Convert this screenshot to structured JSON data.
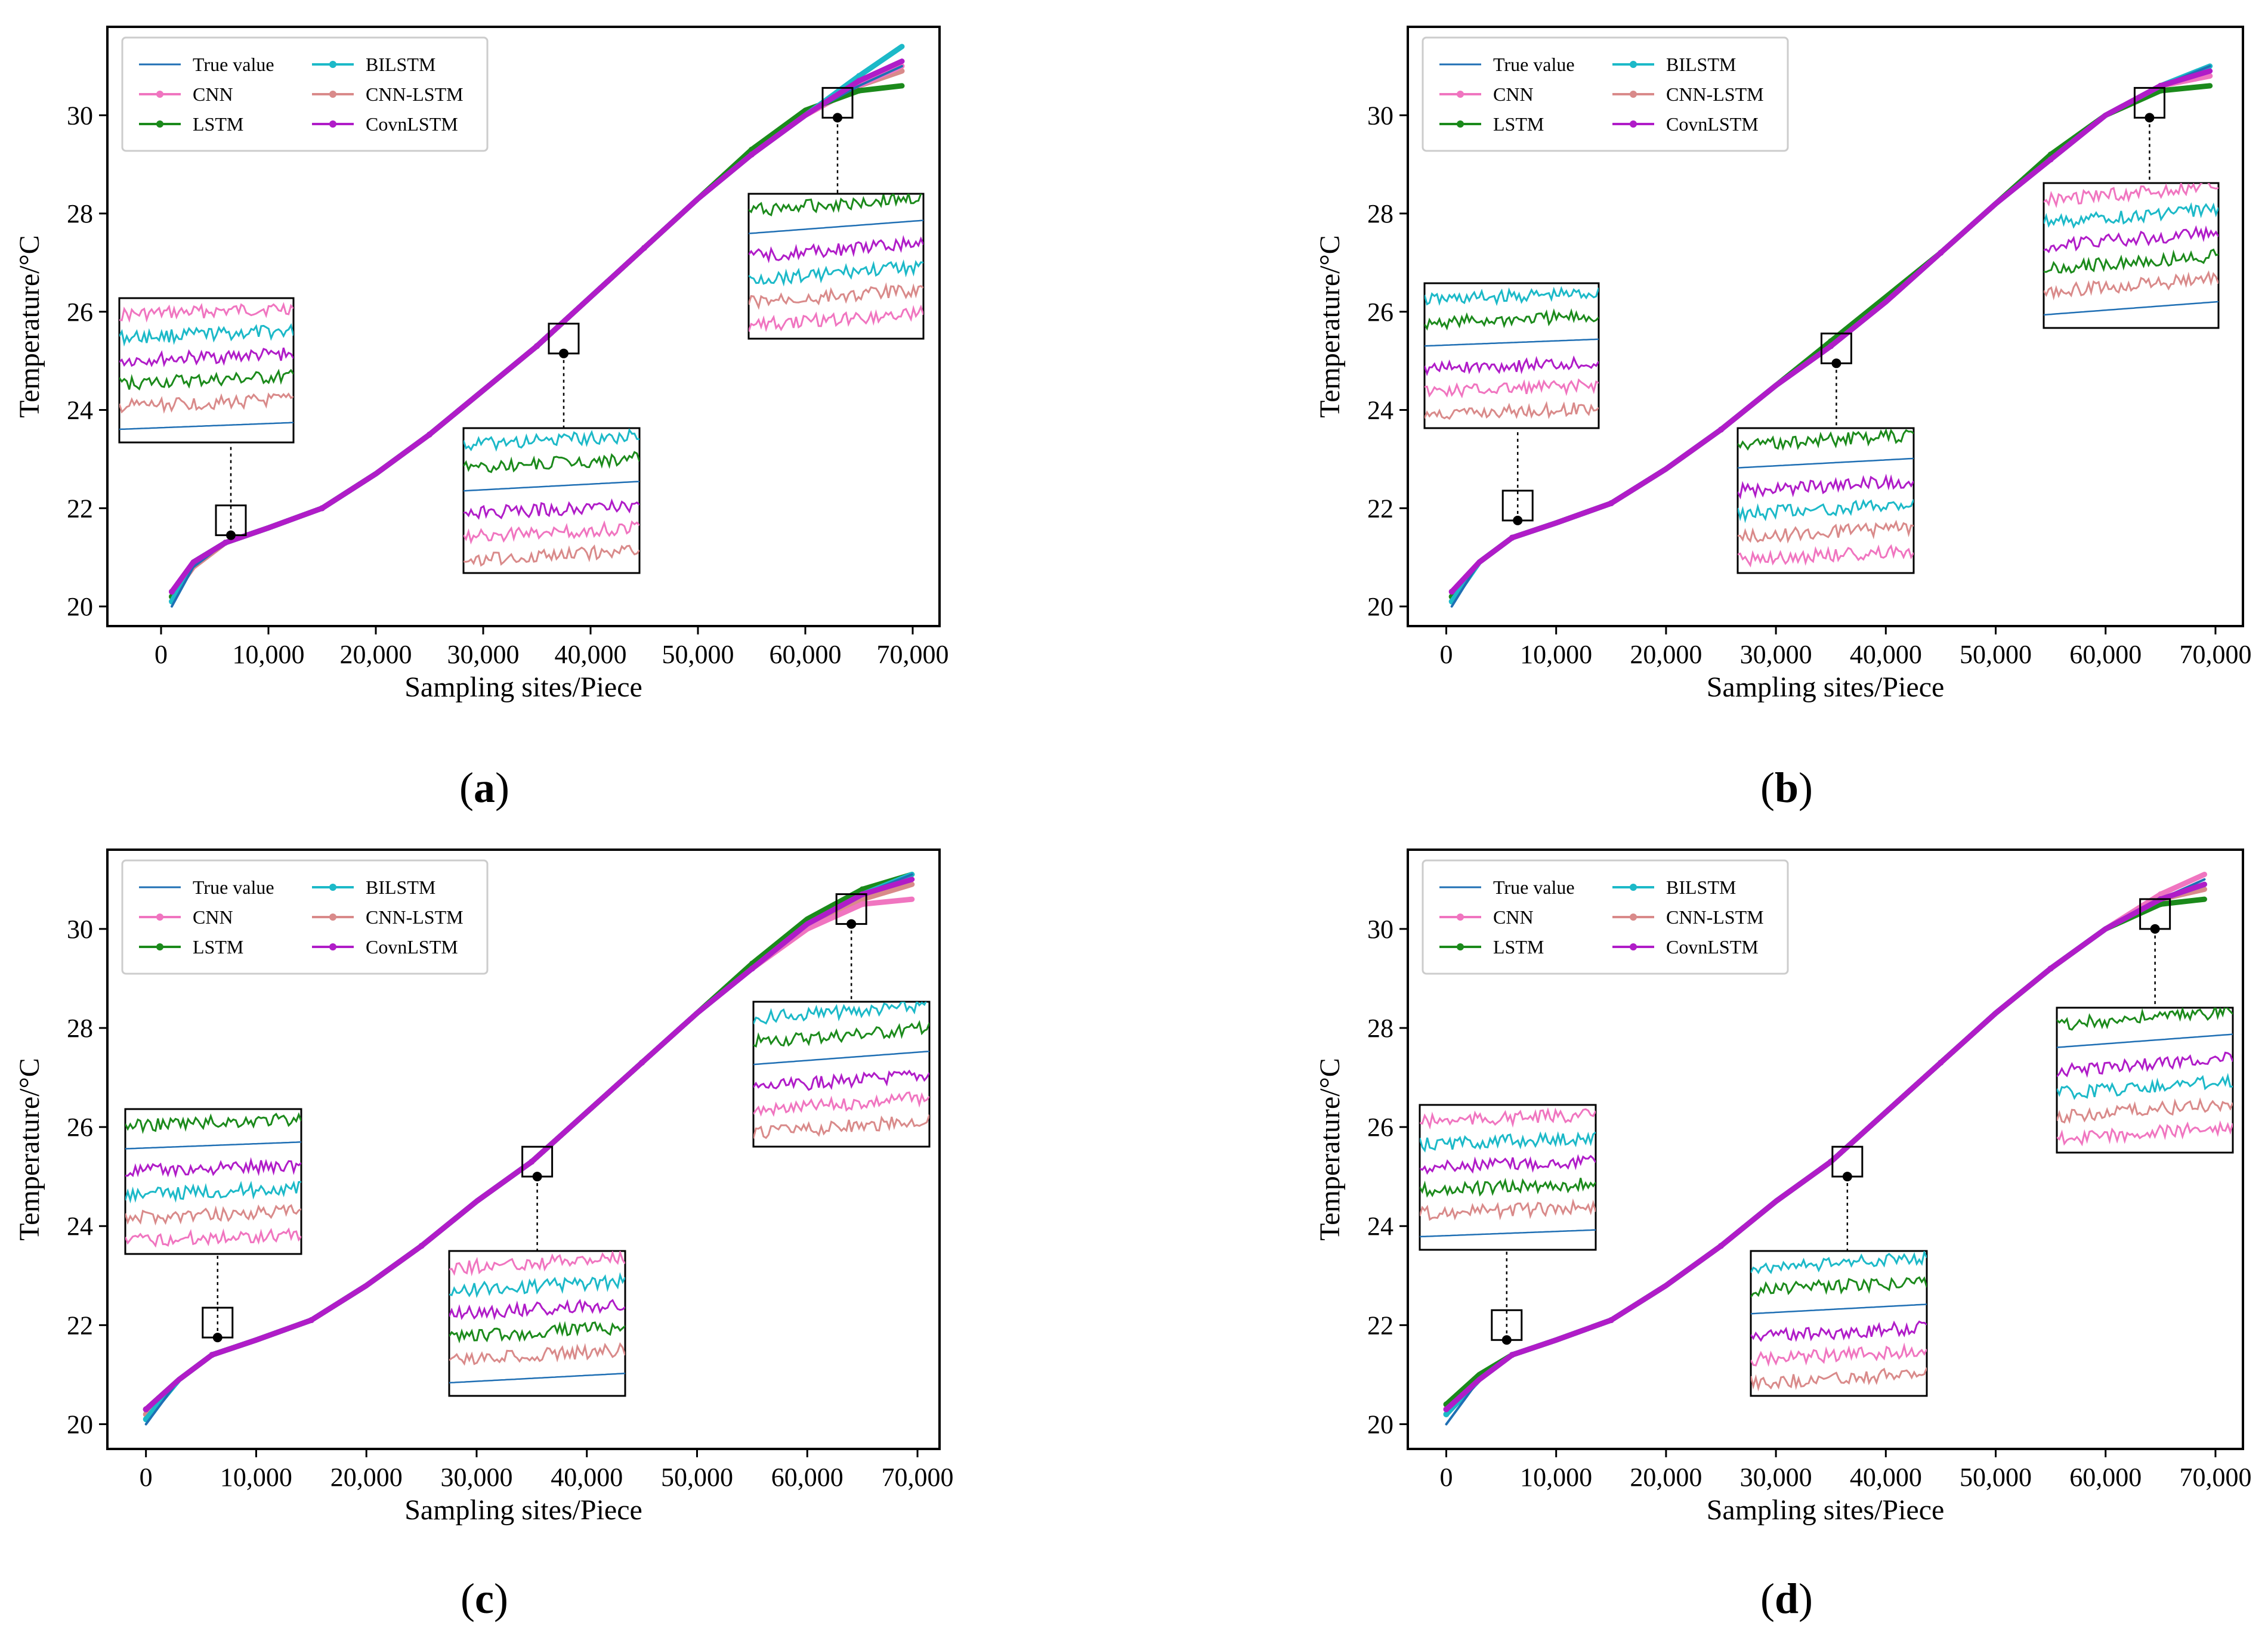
{
  "figure_title": "",
  "colors": {
    "True value": "#1f6fb4",
    "CNN": "#f075c0",
    "LSTM": "#1b8a1b",
    "BILSTM": "#1cb9c8",
    "CNN-LSTM": "#d98a8a",
    "CovnLSTM": "#b01cc8"
  },
  "chart_data": [
    {
      "id": "a",
      "type": "line",
      "panel_label": "a",
      "xlabel": "Sampling sites/Piece",
      "ylabel": "Temperature/°C",
      "xlim": [
        -5000,
        72500
      ],
      "ylim": [
        19.6,
        31.8
      ],
      "xticks": [
        0,
        10000,
        20000,
        30000,
        40000,
        50000,
        60000,
        70000
      ],
      "xtick_labels": [
        "0",
        "10,000",
        "20,000",
        "30,000",
        "40,000",
        "50,000",
        "60,000",
        "70,000"
      ],
      "yticks": [
        20,
        22,
        24,
        26,
        28,
        30
      ],
      "ytick_labels": [
        "20",
        "22",
        "24",
        "26",
        "28",
        "30"
      ],
      "legend": [
        "True value",
        "CNN",
        "LSTM",
        "BILSTM",
        "CNN-LSTM",
        "CovnLSTM"
      ],
      "legend_position": "top-left",
      "x": [
        1000,
        3000,
        6000,
        10000,
        15000,
        20000,
        25000,
        30000,
        35000,
        40000,
        45000,
        50000,
        55000,
        60000,
        65000,
        69000
      ],
      "series": [
        {
          "name": "True value",
          "values": [
            20.0,
            20.8,
            21.3,
            21.6,
            22.0,
            22.7,
            23.5,
            24.4,
            25.3,
            26.3,
            27.3,
            28.3,
            29.2,
            30.0,
            30.6,
            31.0
          ]
        },
        {
          "name": "CNN",
          "values": [
            20.3,
            20.9,
            21.3,
            21.6,
            22.0,
            22.7,
            23.5,
            24.4,
            25.3,
            26.3,
            27.3,
            28.3,
            29.2,
            30.0,
            30.6,
            31.0
          ]
        },
        {
          "name": "LSTM",
          "values": [
            20.2,
            20.9,
            21.3,
            21.6,
            22.0,
            22.7,
            23.5,
            24.4,
            25.3,
            26.3,
            27.3,
            28.3,
            29.3,
            30.1,
            30.5,
            30.6
          ]
        },
        {
          "name": "BILSTM",
          "values": [
            20.1,
            20.9,
            21.3,
            21.6,
            22.0,
            22.7,
            23.5,
            24.4,
            25.3,
            26.3,
            27.3,
            28.3,
            29.2,
            30.0,
            30.8,
            31.4
          ]
        },
        {
          "name": "CNN-LSTM",
          "values": [
            20.2,
            20.8,
            21.3,
            21.6,
            22.0,
            22.7,
            23.5,
            24.4,
            25.3,
            26.3,
            27.3,
            28.3,
            29.2,
            30.0,
            30.6,
            30.9
          ]
        },
        {
          "name": "CovnLSTM",
          "values": [
            20.3,
            20.9,
            21.3,
            21.6,
            22.0,
            22.7,
            23.5,
            24.4,
            25.3,
            26.3,
            27.3,
            28.3,
            29.2,
            30.0,
            30.7,
            31.1
          ]
        }
      ],
      "zoom_points": [
        {
          "x": 6500,
          "y": 21.45
        },
        {
          "x": 37500,
          "y": 25.15
        },
        {
          "x": 63000,
          "y": 29.95
        }
      ]
    },
    {
      "id": "b",
      "type": "line",
      "panel_label": "b",
      "xlabel": "Sampling sites/Piece",
      "ylabel": "Temperature/°C",
      "xlim": [
        -3500,
        72500
      ],
      "ylim": [
        19.6,
        31.8
      ],
      "xticks": [
        0,
        10000,
        20000,
        30000,
        40000,
        50000,
        60000,
        70000
      ],
      "xtick_labels": [
        "0",
        "10,000",
        "20,000",
        "30,000",
        "40,000",
        "50,000",
        "60,000",
        "70,000"
      ],
      "yticks": [
        20,
        22,
        24,
        26,
        28,
        30
      ],
      "ytick_labels": [
        "20",
        "22",
        "24",
        "26",
        "28",
        "30"
      ],
      "legend": [
        "True value",
        "CNN",
        "LSTM",
        "BILSTM",
        "CNN-LSTM",
        "CovnLSTM"
      ],
      "legend_position": "top-left",
      "x": [
        500,
        3000,
        6000,
        10000,
        15000,
        20000,
        25000,
        30000,
        35000,
        40000,
        45000,
        50000,
        55000,
        60000,
        65000,
        69500
      ],
      "series": [
        {
          "name": "True value",
          "values": [
            20.0,
            20.9,
            21.4,
            21.7,
            22.1,
            22.8,
            23.6,
            24.5,
            25.3,
            26.2,
            27.2,
            28.2,
            29.1,
            30.0,
            30.6,
            31.0
          ]
        },
        {
          "name": "CNN",
          "values": [
            20.3,
            20.9,
            21.4,
            21.7,
            22.1,
            22.8,
            23.6,
            24.5,
            25.3,
            26.2,
            27.2,
            28.2,
            29.1,
            30.0,
            30.6,
            30.8
          ]
        },
        {
          "name": "LSTM",
          "values": [
            20.2,
            20.9,
            21.4,
            21.7,
            22.1,
            22.8,
            23.6,
            24.5,
            25.4,
            26.3,
            27.2,
            28.2,
            29.2,
            30.0,
            30.5,
            30.6
          ]
        },
        {
          "name": "BILSTM",
          "values": [
            20.1,
            20.9,
            21.4,
            21.7,
            22.1,
            22.8,
            23.6,
            24.5,
            25.3,
            26.2,
            27.2,
            28.2,
            29.1,
            30.0,
            30.6,
            31.0
          ]
        },
        {
          "name": "CNN-LSTM",
          "values": [
            20.2,
            20.9,
            21.4,
            21.7,
            22.1,
            22.8,
            23.6,
            24.5,
            25.3,
            26.2,
            27.2,
            28.2,
            29.1,
            30.0,
            30.6,
            30.8
          ]
        },
        {
          "name": "CovnLSTM",
          "values": [
            20.3,
            20.9,
            21.4,
            21.7,
            22.1,
            22.8,
            23.6,
            24.5,
            25.3,
            26.2,
            27.2,
            28.2,
            29.1,
            30.0,
            30.6,
            30.9
          ]
        }
      ],
      "zoom_points": [
        {
          "x": 6500,
          "y": 21.75
        },
        {
          "x": 35500,
          "y": 24.95
        },
        {
          "x": 64000,
          "y": 29.95
        }
      ]
    },
    {
      "id": "c",
      "type": "line",
      "panel_label": "c",
      "xlabel": "Sampling sites/Piece",
      "ylabel": "Temperature/°C",
      "xlim": [
        -3500,
        72000
      ],
      "ylim": [
        19.5,
        31.6
      ],
      "xticks": [
        0,
        10000,
        20000,
        30000,
        40000,
        50000,
        60000,
        70000
      ],
      "xtick_labels": [
        "0",
        "10,000",
        "20,000",
        "30,000",
        "40,000",
        "50,000",
        "60,000",
        "70,000"
      ],
      "yticks": [
        20,
        22,
        24,
        26,
        28,
        30
      ],
      "ytick_labels": [
        "20",
        "22",
        "24",
        "26",
        "28",
        "30"
      ],
      "legend": [
        "True value",
        "CNN",
        "LSTM",
        "BILSTM",
        "CNN-LSTM",
        "CovnLSTM"
      ],
      "legend_position": "top-left",
      "x": [
        0,
        3000,
        6000,
        10000,
        15000,
        20000,
        25000,
        30000,
        35000,
        40000,
        45000,
        50000,
        55000,
        60000,
        65000,
        69500
      ],
      "series": [
        {
          "name": "True value",
          "values": [
            20.0,
            20.9,
            21.4,
            21.7,
            22.1,
            22.8,
            23.6,
            24.5,
            25.3,
            26.3,
            27.3,
            28.3,
            29.2,
            30.1,
            30.7,
            31.1
          ]
        },
        {
          "name": "CNN",
          "values": [
            20.3,
            20.9,
            21.4,
            21.7,
            22.1,
            22.8,
            23.6,
            24.5,
            25.3,
            26.3,
            27.3,
            28.3,
            29.2,
            30.0,
            30.5,
            30.6
          ]
        },
        {
          "name": "LSTM",
          "values": [
            20.3,
            20.9,
            21.4,
            21.7,
            22.1,
            22.8,
            23.6,
            24.5,
            25.3,
            26.3,
            27.3,
            28.3,
            29.3,
            30.2,
            30.8,
            31.1
          ]
        },
        {
          "name": "BILSTM",
          "values": [
            20.1,
            20.9,
            21.4,
            21.7,
            22.1,
            22.8,
            23.6,
            24.5,
            25.3,
            26.3,
            27.3,
            28.3,
            29.2,
            30.1,
            30.7,
            31.1
          ]
        },
        {
          "name": "CNN-LSTM",
          "values": [
            20.2,
            20.9,
            21.4,
            21.7,
            22.1,
            22.8,
            23.6,
            24.5,
            25.3,
            26.3,
            27.3,
            28.3,
            29.2,
            30.0,
            30.6,
            30.9
          ]
        },
        {
          "name": "CovnLSTM",
          "values": [
            20.3,
            20.9,
            21.4,
            21.7,
            22.1,
            22.8,
            23.6,
            24.5,
            25.3,
            26.3,
            27.3,
            28.3,
            29.2,
            30.1,
            30.7,
            31.0
          ]
        }
      ],
      "zoom_points": [
        {
          "x": 6500,
          "y": 21.75
        },
        {
          "x": 35500,
          "y": 25.0
        },
        {
          "x": 64000,
          "y": 30.1
        }
      ]
    },
    {
      "id": "d",
      "type": "line",
      "panel_label": "d",
      "xlabel": "Sampling sites/Piece",
      "ylabel": "Temperature/°C",
      "xlim": [
        -3500,
        72500
      ],
      "ylim": [
        19.5,
        31.6
      ],
      "xticks": [
        0,
        10000,
        20000,
        30000,
        40000,
        50000,
        60000,
        70000
      ],
      "xtick_labels": [
        "0",
        "10,000",
        "20,000",
        "30,000",
        "40,000",
        "50,000",
        "60,000",
        "70,000"
      ],
      "yticks": [
        20,
        22,
        24,
        26,
        28,
        30
      ],
      "ytick_labels": [
        "20",
        "22",
        "24",
        "26",
        "28",
        "30"
      ],
      "legend": [
        "True value",
        "CNN",
        "LSTM",
        "BILSTM",
        "CNN-LSTM",
        "CovnLSTM"
      ],
      "legend_position": "top-left",
      "x": [
        0,
        3000,
        6000,
        10000,
        15000,
        20000,
        25000,
        30000,
        35000,
        40000,
        45000,
        50000,
        55000,
        60000,
        65000,
        69000
      ],
      "series": [
        {
          "name": "True value",
          "values": [
            20.0,
            20.9,
            21.4,
            21.7,
            22.1,
            22.8,
            23.6,
            24.5,
            25.3,
            26.3,
            27.3,
            28.3,
            29.2,
            30.0,
            30.6,
            31.0
          ]
        },
        {
          "name": "CNN",
          "values": [
            20.3,
            20.9,
            21.4,
            21.7,
            22.1,
            22.8,
            23.6,
            24.5,
            25.3,
            26.3,
            27.3,
            28.3,
            29.2,
            30.0,
            30.7,
            31.1
          ]
        },
        {
          "name": "LSTM",
          "values": [
            20.4,
            21.0,
            21.4,
            21.7,
            22.1,
            22.8,
            23.6,
            24.5,
            25.3,
            26.3,
            27.3,
            28.3,
            29.2,
            30.0,
            30.5,
            30.6
          ]
        },
        {
          "name": "BILSTM",
          "values": [
            20.2,
            20.9,
            21.4,
            21.7,
            22.1,
            22.8,
            23.6,
            24.5,
            25.3,
            26.3,
            27.3,
            28.3,
            29.2,
            30.0,
            30.6,
            30.9
          ]
        },
        {
          "name": "CNN-LSTM",
          "values": [
            20.2,
            20.9,
            21.4,
            21.7,
            22.1,
            22.8,
            23.6,
            24.5,
            25.3,
            26.3,
            27.3,
            28.3,
            29.2,
            30.0,
            30.6,
            30.8
          ]
        },
        {
          "name": "CovnLSTM",
          "values": [
            20.3,
            20.9,
            21.4,
            21.7,
            22.1,
            22.8,
            23.6,
            24.5,
            25.3,
            26.3,
            27.3,
            28.3,
            29.2,
            30.0,
            30.6,
            30.9
          ]
        }
      ],
      "zoom_points": [
        {
          "x": 5500,
          "y": 21.7
        },
        {
          "x": 36500,
          "y": 25.0
        },
        {
          "x": 64500,
          "y": 30.0
        }
      ]
    }
  ]
}
